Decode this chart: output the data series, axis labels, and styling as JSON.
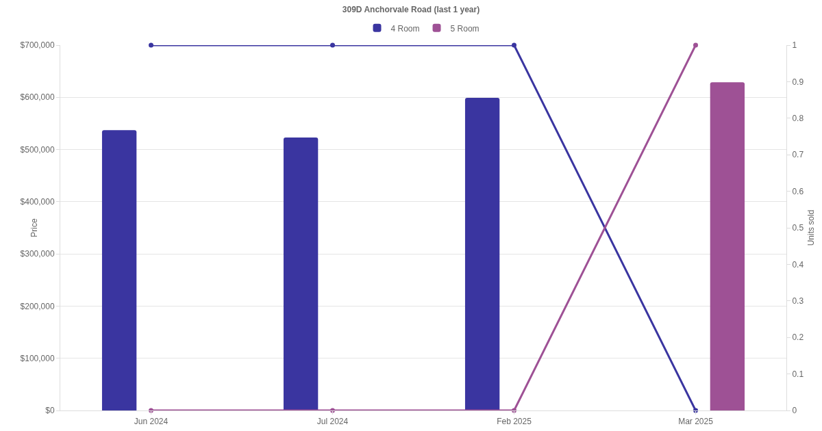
{
  "chart_data": {
    "type": "bar",
    "title": "309D Anchorvale Road (last 1 year)",
    "ylabel": "Price",
    "y2label": "Units sold",
    "categories": [
      "Jun 2024",
      "Jul 2024",
      "Feb 2025",
      "Mar 2025"
    ],
    "series": [
      {
        "name": "4 Room",
        "color": "#3a35a0",
        "values": [
          537000,
          523000,
          599000,
          null
        ]
      },
      {
        "name": "5 Room",
        "color": "#9e5195",
        "values": [
          null,
          null,
          null,
          629000
        ]
      },
      {
        "type": "line",
        "axis": "y2",
        "color": "#3a35a0",
        "values": [
          1,
          1,
          1,
          0
        ]
      },
      {
        "type": "line",
        "axis": "y2",
        "color": "#9e5195",
        "values": [
          0,
          0,
          0,
          1
        ]
      }
    ],
    "ylim": [
      0,
      700000
    ],
    "yticks": [
      {
        "value": 0,
        "label": "$0"
      },
      {
        "value": 100000,
        "label": "$100,000"
      },
      {
        "value": 200000,
        "label": "$200,000"
      },
      {
        "value": 300000,
        "label": "$300,000"
      },
      {
        "value": 400000,
        "label": "$400,000"
      },
      {
        "value": 500000,
        "label": "$500,000"
      },
      {
        "value": 600000,
        "label": "$600,000"
      },
      {
        "value": 700000,
        "label": "$700,000"
      }
    ],
    "y2lim": [
      0,
      1
    ],
    "y2ticks": [
      0,
      0.1,
      0.2,
      0.3,
      0.4,
      0.5,
      0.6,
      0.7,
      0.8,
      0.9,
      1
    ],
    "grid": "y",
    "legend": "top",
    "marker": "circle",
    "line_style": "solid"
  }
}
